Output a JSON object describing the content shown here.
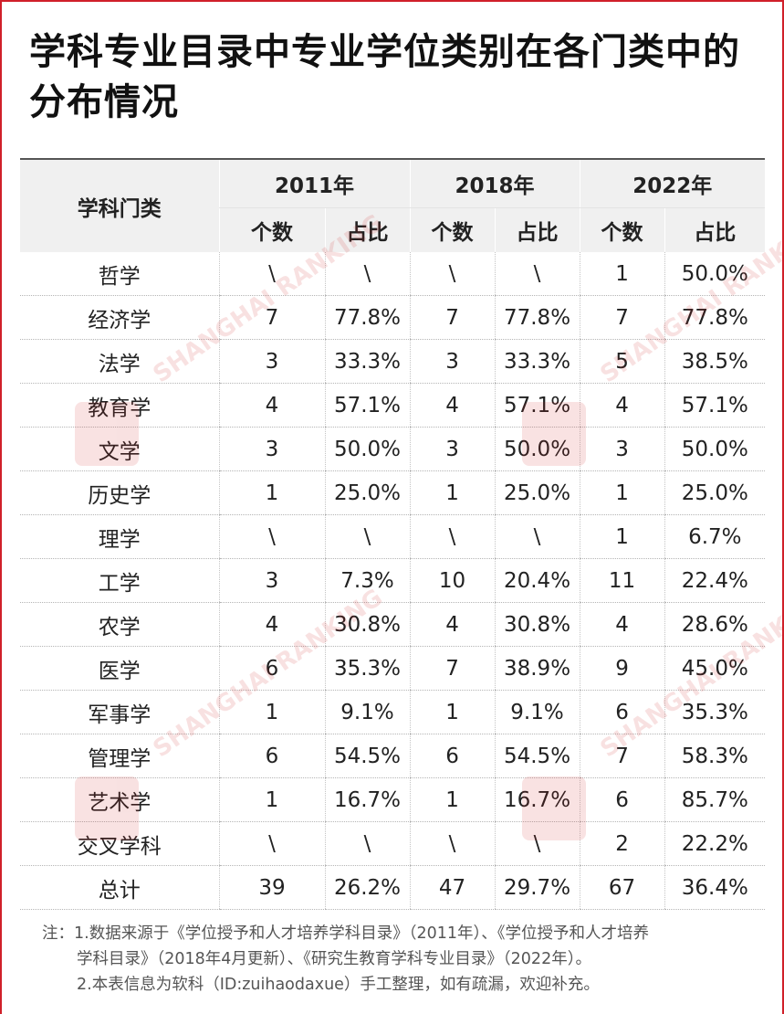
{
  "title": "学科专业目录中专业学位类别在各门类中的分布情况",
  "table": {
    "header_category": "学科门类",
    "years": [
      "2011年",
      "2018年",
      "2022年"
    ],
    "sub_headers": {
      "count": "个数",
      "ratio": "占比"
    },
    "rows": [
      [
        "哲学",
        "\\",
        "\\",
        "\\",
        "\\",
        "1",
        "50.0%"
      ],
      [
        "经济学",
        "7",
        "77.8%",
        "7",
        "77.8%",
        "7",
        "77.8%"
      ],
      [
        "法学",
        "3",
        "33.3%",
        "3",
        "33.3%",
        "5",
        "38.5%"
      ],
      [
        "教育学",
        "4",
        "57.1%",
        "4",
        "57.1%",
        "4",
        "57.1%"
      ],
      [
        "文学",
        "3",
        "50.0%",
        "3",
        "50.0%",
        "3",
        "50.0%"
      ],
      [
        "历史学",
        "1",
        "25.0%",
        "1",
        "25.0%",
        "1",
        "25.0%"
      ],
      [
        "理学",
        "\\",
        "\\",
        "\\",
        "\\",
        "1",
        "6.7%"
      ],
      [
        "工学",
        "3",
        "7.3%",
        "10",
        "20.4%",
        "11",
        "22.4%"
      ],
      [
        "农学",
        "4",
        "30.8%",
        "4",
        "30.8%",
        "4",
        "28.6%"
      ],
      [
        "医学",
        "6",
        "35.3%",
        "7",
        "38.9%",
        "9",
        "45.0%"
      ],
      [
        "军事学",
        "1",
        "9.1%",
        "1",
        "9.1%",
        "6",
        "35.3%"
      ],
      [
        "管理学",
        "6",
        "54.5%",
        "6",
        "54.5%",
        "7",
        "58.3%"
      ],
      [
        "艺术学",
        "1",
        "16.7%",
        "1",
        "16.7%",
        "6",
        "85.7%"
      ],
      [
        "交叉学科",
        "\\",
        "\\",
        "\\",
        "\\",
        "2",
        "22.2%"
      ],
      [
        "总计",
        "39",
        "26.2%",
        "47",
        "29.7%",
        "67",
        "36.4%"
      ]
    ]
  },
  "footnote": {
    "line1": "注：1.数据来源于《学位授予和人才培养学科目录》（2011年）、《学位授予和人才培养",
    "line2": "学科目录》（2018年4月更新）、《研究生教育学科专业目录》（2022年）。",
    "line3": "2.本表信息为软科（ID:zuihaodaxue）手工整理，如有疏漏，欢迎补充。"
  },
  "watermark": {
    "text": "SHANGHAI RANKING",
    "color": "#d02020"
  },
  "colors": {
    "accent_border": "#d0202a",
    "header_bg": "#f0f0f0"
  }
}
